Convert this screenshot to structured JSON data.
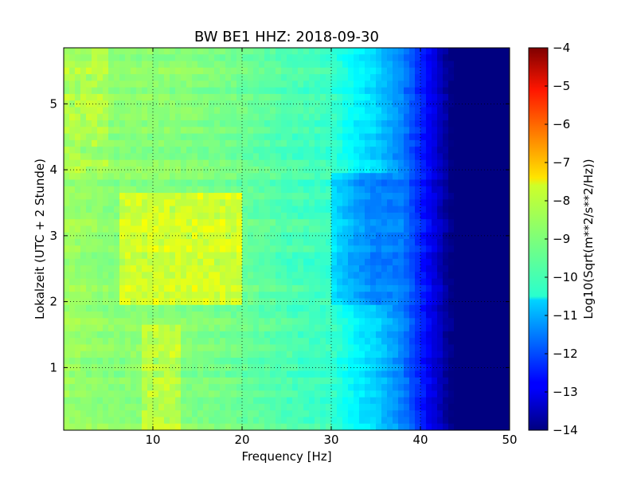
{
  "chart_data": {
    "type": "heatmap",
    "title": "BW BE1 HHZ: 2018-09-30",
    "xlabel": "Frequency [Hz]",
    "ylabel": "Lokalzeit (UTC + 2 Stunde)",
    "xlim": [
      0,
      50
    ],
    "ylim": [
      5.85,
      0.05
    ],
    "x_ticks": [
      "10",
      "20",
      "30",
      "40",
      "50"
    ],
    "y_ticks": [
      "1",
      "2",
      "3",
      "4",
      "5"
    ],
    "grid": true,
    "colorbar": {
      "label": "Log10(Sqrt(m**2/s**2/Hz))",
      "range": [
        -14,
        -4
      ],
      "ticks": [
        "-4",
        "-5",
        "-6",
        "-7",
        "-8",
        "-9",
        "-10",
        "-11",
        "-12",
        "-13",
        "-14"
      ],
      "colormap": "jet"
    },
    "frequency_profile": {
      "x": [
        0,
        5,
        10,
        15,
        20,
        25,
        30,
        33,
        35,
        38,
        40,
        42,
        43.5,
        45,
        50
      ],
      "values": [
        -8.7,
        -8.9,
        -8.9,
        -9.0,
        -9.2,
        -9.5,
        -9.7,
        -10.4,
        -10.7,
        -11.5,
        -12.4,
        -13.3,
        -14,
        -14,
        -14
      ]
    },
    "hotspots": [
      {
        "freq_range": [
          6.5,
          20
        ],
        "time_range": [
          2.0,
          3.6
        ],
        "value": -8.2
      },
      {
        "freq_range": [
          9,
          13
        ],
        "time_range": [
          0.1,
          1.6
        ],
        "value": -8.4
      },
      {
        "freq_range": [
          0,
          5
        ],
        "time_range": [
          4.0,
          5.85
        ],
        "value": -8.6
      }
    ],
    "quiet_band": {
      "freq_range": [
        30,
        41
      ],
      "time_range": [
        2.0,
        3.9
      ],
      "value": -11.5
    }
  }
}
